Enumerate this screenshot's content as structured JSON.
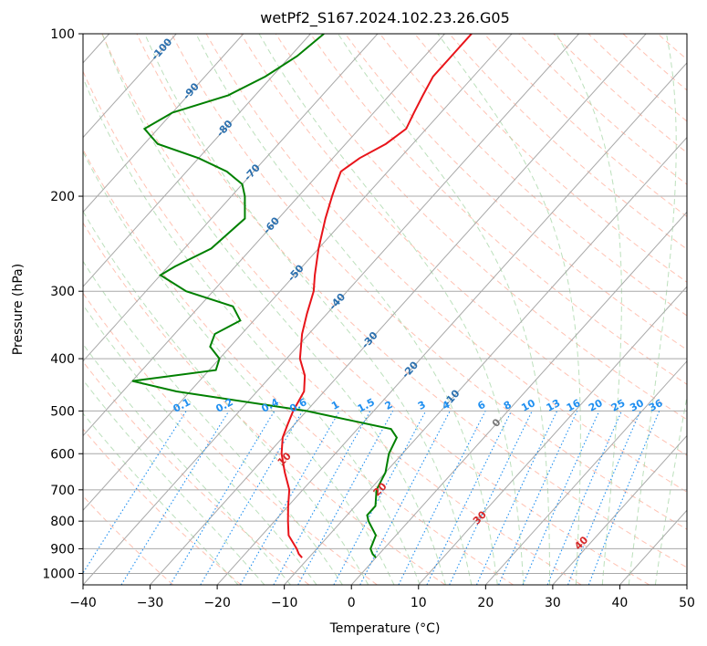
{
  "chart_data": {
    "type": "line",
    "title": "wetPf2_S167.2024.102.23.26.G05",
    "xlabel": "Temperature (°C)",
    "ylabel": "Pressure (hPa)",
    "xlim": [
      -40,
      50
    ],
    "ylim": [
      1050,
      100
    ],
    "y_scale": "log",
    "x_ticks": [
      "-40",
      "-30",
      "-20",
      "-10",
      "0",
      "10",
      "20",
      "30",
      "40",
      "50"
    ],
    "y_ticks": [
      "100",
      "200",
      "300",
      "400",
      "500",
      "600",
      "700",
      "800",
      "900",
      "1000"
    ],
    "grid": true,
    "colors": {
      "temperature": "#e8141a",
      "dewpoint": "#008000",
      "isotherm": "#a8a8a8",
      "dry_adiabat": "#ff9a80",
      "moist_adiabat": "#9fd39f",
      "mixing_ratio": "#1f8ff0",
      "isotherm_label": "#2a6fae",
      "adiabat_label": "#d62728"
    },
    "temperature": {
      "p": [
        100,
        110,
        120,
        130,
        140,
        150,
        160,
        170,
        180,
        190,
        200,
        220,
        250,
        280,
        300,
        330,
        360,
        400,
        430,
        460,
        500,
        530,
        560,
        600,
        650,
        700,
        750,
        800,
        850,
        900,
        920,
        935
      ],
      "t": [
        -56,
        -56,
        -56,
        -55,
        -54,
        -53,
        -54,
        -56,
        -57,
        -56,
        -55,
        -53,
        -50,
        -47,
        -45,
        -43,
        -41,
        -38,
        -35,
        -33,
        -32,
        -31,
        -30,
        -28,
        -25,
        -22,
        -20,
        -18,
        -16,
        -13,
        -12,
        -11
      ]
    },
    "dewpoint": {
      "p": [
        100,
        110,
        120,
        130,
        140,
        150,
        160,
        170,
        180,
        190,
        200,
        220,
        250,
        270,
        280,
        300,
        320,
        340,
        360,
        380,
        400,
        420,
        440,
        460,
        500,
        540,
        560,
        600,
        650,
        700,
        750,
        780,
        800,
        850,
        900,
        920,
        935
      ],
      "td": [
        -78,
        -79,
        -81,
        -84,
        -90,
        -92,
        -88,
        -80,
        -74,
        -70,
        -68,
        -65,
        -66,
        -69,
        -70,
        -64,
        -55,
        -52,
        -54,
        -53,
        -50,
        -49,
        -60,
        -52,
        -30,
        -15,
        -13,
        -12,
        -10,
        -9,
        -7,
        -7,
        -6,
        -3,
        -2,
        -1,
        0
      ]
    },
    "isotherm_labels": [
      "-100",
      "-90",
      "-80",
      "-70",
      "-60",
      "-50",
      "-40",
      "-30",
      "-20",
      "-10",
      "0"
    ],
    "dry_adiabat_labels": [
      "10",
      "20",
      "30",
      "40"
    ],
    "mixing_ratio_labels": [
      "0.1",
      "0.2",
      "0.4",
      "0.6",
      "1",
      "1.5",
      "2",
      "3",
      "4",
      "6",
      "8",
      "10",
      "13",
      "16",
      "20",
      "25",
      "30",
      "36"
    ]
  }
}
